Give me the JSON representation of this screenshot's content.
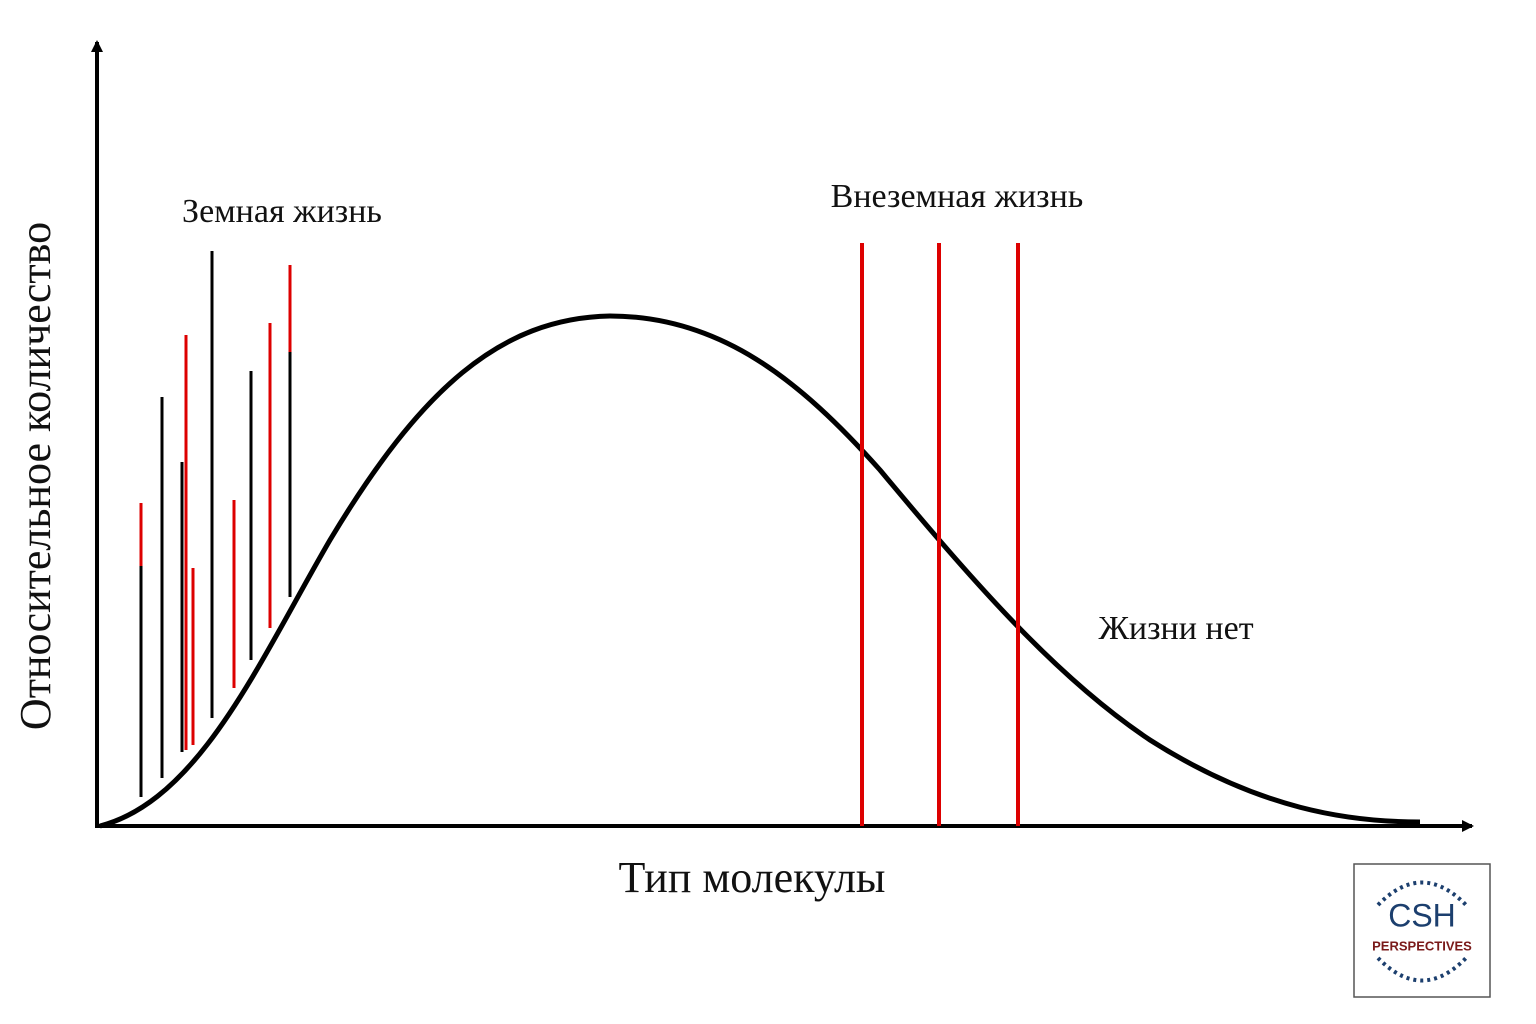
{
  "axes": {
    "y_label": "Относительное количество",
    "x_label": "Тип молекулы"
  },
  "labels": {
    "earth_life": "Земная жизнь",
    "alien_life": "Внеземная жизнь",
    "no_life": "Жизни нет"
  },
  "logo": {
    "title": "CSH",
    "subtitle": "PERSPECTIVES"
  }
}
